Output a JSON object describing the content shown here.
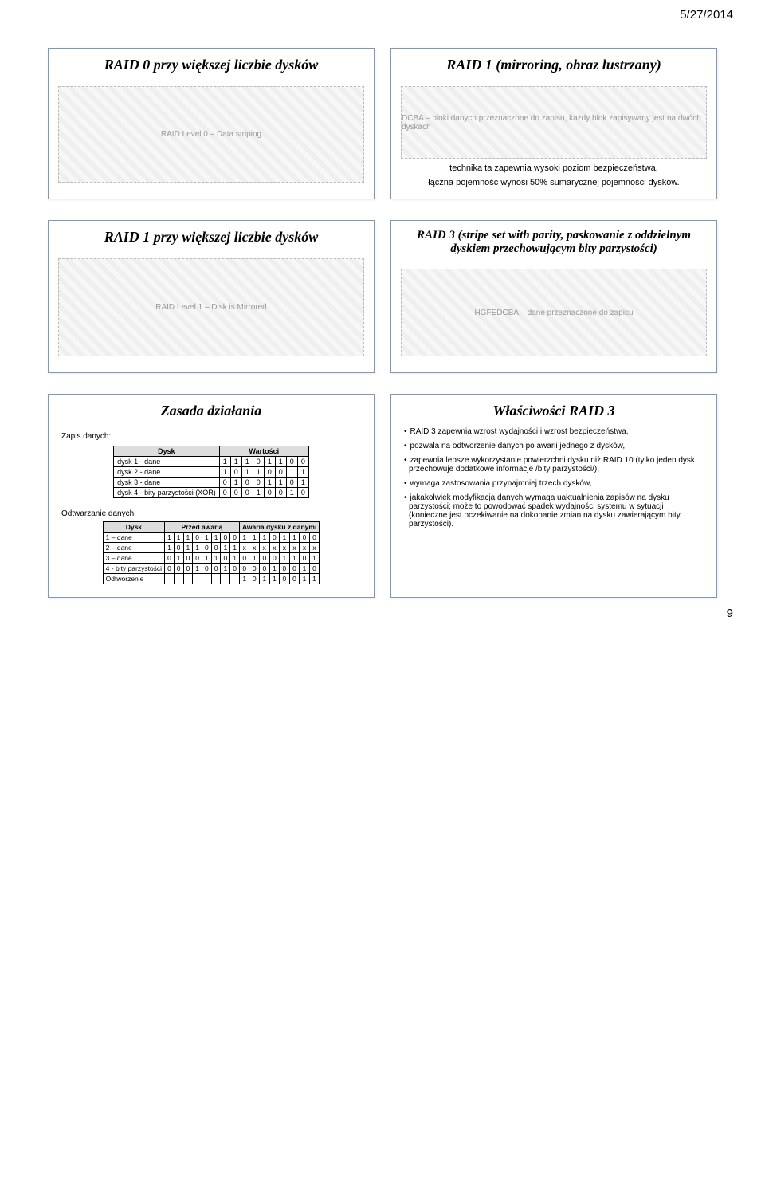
{
  "date": "5/27/2014",
  "page_number": "9",
  "slides": {
    "s1": {
      "title": "RAID 0 przy większej liczbie dysków",
      "img_alt": "RAID Level 0 – Data striping"
    },
    "s2": {
      "title": "RAID 1 (mirroring, obraz lustrzany)",
      "img_alt": "DCBA – bloki danych przeznaczone do zapisu, każdy blok zapisywany jest na dwóch dyskach",
      "text1": "technika ta zapewnia wysoki poziom bezpieczeństwa,",
      "text2": "łączna pojemność wynosi 50% sumarycznej pojemności dysków."
    },
    "s3": {
      "title": "RAID 1 przy większej liczbie dysków",
      "img_alt": "RAID Level 1 – Disk is Mirrored"
    },
    "s4": {
      "title": "RAID 3 (stripe set with parity, paskowanie z oddzielnym dyskiem przechowującym bity parzystości)",
      "img_alt": "HGFEDCBA – dane przeznaczone do zapisu"
    },
    "s5": {
      "title": "Zasada działania",
      "zapis_label": "Zapis danych:",
      "odt_label": "Odtwarzanie danych:",
      "table1": {
        "head": [
          "Dysk",
          "Wartości"
        ],
        "rows": [
          {
            "label": "dysk 1 - dane",
            "vals": [
              "1",
              "1",
              "1",
              "0",
              "1",
              "1",
              "0",
              "0"
            ]
          },
          {
            "label": "dysk 2 - dane",
            "vals": [
              "1",
              "0",
              "1",
              "1",
              "0",
              "0",
              "1",
              "1"
            ]
          },
          {
            "label": "dysk 3 - dane",
            "vals": [
              "0",
              "1",
              "0",
              "0",
              "1",
              "1",
              "0",
              "1"
            ]
          },
          {
            "label": "dysk 4 - bity parzystości (XOR)",
            "vals": [
              "0",
              "0",
              "0",
              "1",
              "0",
              "0",
              "1",
              "0"
            ]
          }
        ]
      },
      "table2": {
        "head": [
          "Dysk",
          "Przed awarią",
          "Awaria dysku z danymi"
        ],
        "rows": [
          {
            "label": "1 – dane",
            "a": [
              "1",
              "1",
              "1",
              "0",
              "1",
              "1",
              "0",
              "0"
            ],
            "b": [
              "1",
              "1",
              "1",
              "0",
              "1",
              "1",
              "0",
              "0"
            ]
          },
          {
            "label": "2 – dane",
            "a": [
              "1",
              "0",
              "1",
              "1",
              "0",
              "0",
              "1",
              "1"
            ],
            "b": [
              "x",
              "x",
              "x",
              "x",
              "x",
              "x",
              "x",
              "x"
            ]
          },
          {
            "label": "3 – dane",
            "a": [
              "0",
              "1",
              "0",
              "0",
              "1",
              "1",
              "0",
              "1"
            ],
            "b": [
              "0",
              "1",
              "0",
              "0",
              "1",
              "1",
              "0",
              "1"
            ]
          },
          {
            "label": "4 - bity parzystości",
            "a": [
              "0",
              "0",
              "0",
              "1",
              "0",
              "0",
              "1",
              "0"
            ],
            "b": [
              "0",
              "0",
              "0",
              "1",
              "0",
              "0",
              "1",
              "0"
            ]
          },
          {
            "label": "Odtworzenie",
            "a": [
              "",
              "",
              "",
              "",
              "",
              "",
              "",
              ""
            ],
            "b": [
              "1",
              "0",
              "1",
              "1",
              "0",
              "0",
              "1",
              "1"
            ]
          }
        ]
      }
    },
    "s6": {
      "title": "Właściwości RAID 3",
      "bullets": [
        "RAID 3 zapewnia wzrost wydajności i wzrost bezpieczeństwa,",
        "pozwala na odtworzenie danych po awarii jednego z dysków,",
        "zapewnia lepsze wykorzystanie powierzchni dysku niż RAID 10 (tylko jeden dysk przechowuje dodatkowe informacje /bity parzystości/),",
        "wymaga zastosowania przynajmniej trzech dysków,",
        "jakakolwiek modyfikacja danych wymaga uaktualnienia zapisów na dysku parzystości; może to powodować spadek wydajności systemu w sytuacji (konieczne jest oczekiwanie na dokonanie zmian na dysku zawierającym bity parzystości)."
      ]
    }
  }
}
